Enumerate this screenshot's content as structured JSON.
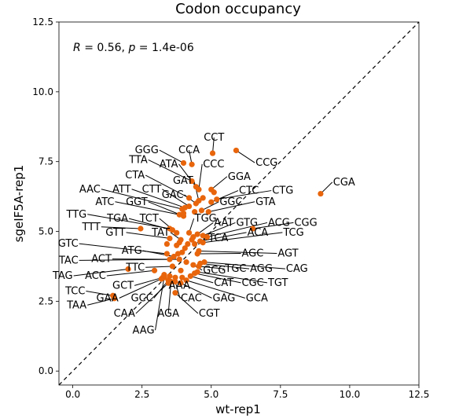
{
  "chart_data": {
    "type": "scatter",
    "title": "Codon occupancy",
    "xlabel": "wt-rep1",
    "ylabel": "sgeIF5A-rep1",
    "xlim": [
      -0.5,
      12.5
    ],
    "ylim": [
      -0.5,
      12.5
    ],
    "xticks": [
      "0.0",
      "2.5",
      "5.0",
      "7.5",
      "10.0",
      "12.5"
    ],
    "yticks": [
      "0.0",
      "2.5",
      "5.0",
      "7.5",
      "10.0",
      "12.5"
    ],
    "annotation": {
      "r_label": "R",
      "r_value": "= 0.56,",
      "p_label": "p",
      "p_value": "= 1.4e-06"
    },
    "point_color": "#e8650c",
    "diagonal": "dashed y=x",
    "grid": false,
    "points": [
      {
        "label": "CCT",
        "x": 5.05,
        "y": 7.8,
        "lx": 5.1,
        "ly": 8.25
      },
      {
        "label": "CCG",
        "x": 5.9,
        "y": 7.9,
        "lx": 6.6,
        "ly": 7.35
      },
      {
        "label": "GGG",
        "x": 4.0,
        "y": 7.45,
        "lx": 3.1,
        "ly": 7.8
      },
      {
        "label": "CCA",
        "x": 4.3,
        "y": 7.4,
        "lx": 4.2,
        "ly": 7.8
      },
      {
        "label": "TTA",
        "x": 4.3,
        "y": 6.8,
        "lx": 2.7,
        "ly": 7.45
      },
      {
        "label": "ATA",
        "x": 4.45,
        "y": 6.6,
        "lx": 3.8,
        "ly": 7.3
      },
      {
        "label": "CCC",
        "x": 4.55,
        "y": 6.5,
        "lx": 4.7,
        "ly": 7.3
      },
      {
        "label": "CTA",
        "x": 4.2,
        "y": 6.2,
        "lx": 2.6,
        "ly": 6.9
      },
      {
        "label": "GAT",
        "x": 4.55,
        "y": 6.1,
        "lx": 4.35,
        "ly": 6.7
      },
      {
        "label": "GGA",
        "x": 5.0,
        "y": 6.5,
        "lx": 5.6,
        "ly": 6.85
      },
      {
        "label": "AAC",
        "x": 3.95,
        "y": 5.8,
        "lx": 1.0,
        "ly": 6.4
      },
      {
        "label": "ATT",
        "x": 4.05,
        "y": 5.85,
        "lx": 2.1,
        "ly": 6.4
      },
      {
        "label": "CTT",
        "x": 4.2,
        "y": 5.9,
        "lx": 3.2,
        "ly": 6.4
      },
      {
        "label": "CTC",
        "x": 5.0,
        "y": 6.05,
        "lx": 6.0,
        "ly": 6.35
      },
      {
        "label": "CTG",
        "x": 5.2,
        "y": 6.15,
        "lx": 7.2,
        "ly": 6.35
      },
      {
        "label": "CGA",
        "x": 8.95,
        "y": 6.35,
        "lx": 9.4,
        "ly": 6.65
      },
      {
        "label": "GAC",
        "x": 4.45,
        "y": 6.0,
        "lx": 4.0,
        "ly": 6.2
      },
      {
        "label": "ATC",
        "x": 3.85,
        "y": 5.6,
        "lx": 1.5,
        "ly": 5.95
      },
      {
        "label": "GGT",
        "x": 4.0,
        "y": 5.55,
        "lx": 2.7,
        "ly": 5.95
      },
      {
        "label": "GGC",
        "x": 4.65,
        "y": 5.75,
        "lx": 5.3,
        "ly": 5.95
      },
      {
        "label": "GTA",
        "x": 4.9,
        "y": 5.7,
        "lx": 6.6,
        "ly": 5.95
      },
      {
        "label": "TTG",
        "x": 3.5,
        "y": 5.1,
        "lx": 0.5,
        "ly": 5.5
      },
      {
        "label": "TGA",
        "x": 3.6,
        "y": 5.05,
        "lx": 2.0,
        "ly": 5.35
      },
      {
        "label": "TCT",
        "x": 3.75,
        "y": 4.95,
        "lx": 3.1,
        "ly": 5.35
      },
      {
        "label": "TGG",
        "x": 4.2,
        "y": 4.95,
        "lx": 4.4,
        "ly": 5.35
      },
      {
        "label": "AAT",
        "x": 4.5,
        "y": 4.9,
        "lx": 5.1,
        "ly": 5.2
      },
      {
        "label": "GTG",
        "x": 4.7,
        "y": 4.85,
        "lx": 5.9,
        "ly": 5.2
      },
      {
        "label": "ACG",
        "x": 4.85,
        "y": 4.8,
        "lx": 7.05,
        "ly": 5.2
      },
      {
        "label": "CGG",
        "x": 6.5,
        "y": 5.1,
        "lx": 8.0,
        "ly": 5.2
      },
      {
        "label": "TTT",
        "x": 2.45,
        "y": 5.1,
        "lx": 1.0,
        "ly": 5.05
      },
      {
        "label": "GTT",
        "x": 3.5,
        "y": 4.75,
        "lx": 1.9,
        "ly": 4.85
      },
      {
        "label": "TAT",
        "x": 3.9,
        "y": 4.7,
        "lx": 3.5,
        "ly": 4.85
      },
      {
        "label": "ACA",
        "x": 4.6,
        "y": 4.65,
        "lx": 6.3,
        "ly": 4.85
      },
      {
        "label": "TCG",
        "x": 4.7,
        "y": 4.6,
        "lx": 7.6,
        "ly": 4.85
      },
      {
        "label": "TCA",
        "x": 4.4,
        "y": 4.55,
        "lx": 4.9,
        "ly": 4.65
      },
      {
        "label": "GTC",
        "x": 3.4,
        "y": 4.2,
        "lx": 0.2,
        "ly": 4.45
      },
      {
        "label": "ATG",
        "x": 3.65,
        "y": 4.1,
        "lx": 2.5,
        "ly": 4.2
      },
      {
        "label": "AGC",
        "x": 4.5,
        "y": 4.2,
        "lx": 6.1,
        "ly": 4.1
      },
      {
        "label": "AGT",
        "x": 4.55,
        "y": 4.3,
        "lx": 7.4,
        "ly": 4.1
      },
      {
        "label": "TAC",
        "x": 3.5,
        "y": 4.0,
        "lx": 0.2,
        "ly": 3.85
      },
      {
        "label": "ACT",
        "x": 3.85,
        "y": 4.0,
        "lx": 1.4,
        "ly": 3.9
      },
      {
        "label": "TTC",
        "x": 3.6,
        "y": 3.75,
        "lx": 2.6,
        "ly": 3.6
      },
      {
        "label": "GCG",
        "x": 4.35,
        "y": 3.8,
        "lx": 4.7,
        "ly": 3.5
      },
      {
        "label": "TGC",
        "x": 4.55,
        "y": 3.75,
        "lx": 5.5,
        "ly": 3.55
      },
      {
        "label": "AGG",
        "x": 4.6,
        "y": 3.85,
        "lx": 6.4,
        "ly": 3.55
      },
      {
        "label": "CAG",
        "x": 4.75,
        "y": 3.9,
        "lx": 7.7,
        "ly": 3.55
      },
      {
        "label": "TAG",
        "x": 2.0,
        "y": 3.65,
        "lx": 0.0,
        "ly": 3.3
      },
      {
        "label": "ACC",
        "x": 2.95,
        "y": 3.6,
        "lx": 1.2,
        "ly": 3.3
      },
      {
        "label": "CAT",
        "x": 4.25,
        "y": 3.4,
        "lx": 5.1,
        "ly": 3.05
      },
      {
        "label": "CGC",
        "x": 4.4,
        "y": 3.5,
        "lx": 6.1,
        "ly": 3.05
      },
      {
        "label": "TGT",
        "x": 4.5,
        "y": 3.55,
        "lx": 7.05,
        "ly": 3.05
      },
      {
        "label": "GCT",
        "x": 3.25,
        "y": 3.35,
        "lx": 2.2,
        "ly": 2.95
      },
      {
        "label": "AAA",
        "x": 3.95,
        "y": 3.35,
        "lx": 3.85,
        "ly": 2.95
      },
      {
        "label": "TCC",
        "x": 1.45,
        "y": 2.7,
        "lx": 0.45,
        "ly": 2.75
      },
      {
        "label": "GAA",
        "x": 3.2,
        "y": 3.3,
        "lx": 1.65,
        "ly": 2.5
      },
      {
        "label": "GCC",
        "x": 3.45,
        "y": 3.25,
        "lx": 2.9,
        "ly": 2.5
      },
      {
        "label": "CAC",
        "x": 3.7,
        "y": 3.2,
        "lx": 3.9,
        "ly": 2.5
      },
      {
        "label": "GAG",
        "x": 3.9,
        "y": 3.15,
        "lx": 5.05,
        "ly": 2.5
      },
      {
        "label": "GCA",
        "x": 4.1,
        "y": 3.25,
        "lx": 6.25,
        "ly": 2.5
      },
      {
        "label": "TAA",
        "x": 1.5,
        "y": 2.6,
        "lx": 0.5,
        "ly": 2.25
      },
      {
        "label": "CAA",
        "x": 3.45,
        "y": 3.15,
        "lx": 2.25,
        "ly": 1.95
      },
      {
        "label": "AGA",
        "x": 3.55,
        "y": 3.2,
        "lx": 3.45,
        "ly": 1.95
      },
      {
        "label": "CGT",
        "x": 3.7,
        "y": 2.8,
        "lx": 4.55,
        "ly": 1.95
      },
      {
        "label": "AAG",
        "x": 3.3,
        "y": 3.35,
        "lx": 2.95,
        "ly": 1.35
      },
      {
        "label": "",
        "x": 3.3,
        "y": 3.45
      },
      {
        "label": "",
        "x": 3.5,
        "y": 3.4
      },
      {
        "label": "",
        "x": 3.7,
        "y": 3.35
      },
      {
        "label": "",
        "x": 3.9,
        "y": 3.6
      },
      {
        "label": "",
        "x": 4.1,
        "y": 3.9
      },
      {
        "label": "",
        "x": 3.8,
        "y": 4.2
      },
      {
        "label": "",
        "x": 3.95,
        "y": 4.25
      },
      {
        "label": "",
        "x": 3.75,
        "y": 4.5
      },
      {
        "label": "",
        "x": 3.85,
        "y": 4.6
      },
      {
        "label": "",
        "x": 4.05,
        "y": 4.4
      },
      {
        "label": "",
        "x": 4.15,
        "y": 4.55
      },
      {
        "label": "",
        "x": 4.3,
        "y": 4.7
      },
      {
        "label": "",
        "x": 4.35,
        "y": 4.8
      },
      {
        "label": "",
        "x": 3.4,
        "y": 4.55
      },
      {
        "label": "",
        "x": 4.0,
        "y": 5.65
      },
      {
        "label": "",
        "x": 4.4,
        "y": 5.7
      },
      {
        "label": "",
        "x": 4.7,
        "y": 6.2
      },
      {
        "label": "",
        "x": 5.1,
        "y": 6.4
      }
    ]
  }
}
